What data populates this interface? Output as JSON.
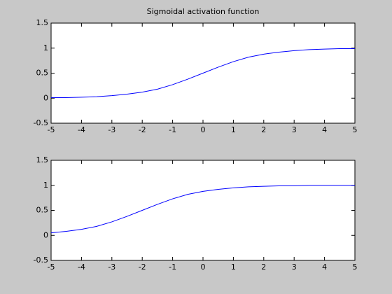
{
  "chart_data": [
    {
      "type": "line",
      "title": "Sigmoidal activation function",
      "x": [
        -5,
        -4.5,
        -4,
        -3.5,
        -3,
        -2.5,
        -2,
        -1.5,
        -1,
        -0.5,
        0,
        0.5,
        1,
        1.5,
        2,
        2.5,
        3,
        3.5,
        4,
        4.5,
        5
      ],
      "values": [
        0.01,
        0.01,
        0.02,
        0.03,
        0.05,
        0.08,
        0.12,
        0.18,
        0.27,
        0.38,
        0.5,
        0.62,
        0.73,
        0.82,
        0.88,
        0.92,
        0.95,
        0.97,
        0.98,
        0.99,
        0.99
      ],
      "color": "#0000ff",
      "xlim": [
        -5,
        5
      ],
      "xticks": [
        -5,
        -4,
        -3,
        -2,
        -1,
        0,
        1,
        2,
        3,
        4,
        5
      ],
      "ylim": [
        -0.5,
        1.5
      ],
      "yticks": [
        -0.5,
        0,
        0.5,
        1,
        1.5
      ]
    },
    {
      "type": "line",
      "x": [
        -5,
        -4.5,
        -4,
        -3.5,
        -3,
        -2.5,
        -2,
        -1.5,
        -1,
        -0.5,
        0,
        0.5,
        1,
        1.5,
        2,
        2.5,
        3,
        3.5,
        4,
        4.5,
        5
      ],
      "values": [
        0.05,
        0.08,
        0.12,
        0.18,
        0.27,
        0.38,
        0.5,
        0.62,
        0.73,
        0.82,
        0.88,
        0.92,
        0.95,
        0.97,
        0.98,
        0.99,
        0.99,
        1.0,
        1.0,
        1.0,
        1.0
      ],
      "color": "#0000ff",
      "xlim": [
        -5,
        5
      ],
      "xticks": [
        -5,
        -4,
        -3,
        -2,
        -1,
        0,
        1,
        2,
        3,
        4,
        5
      ],
      "ylim": [
        -0.5,
        1.5
      ],
      "yticks": [
        -0.5,
        0,
        0.5,
        1,
        1.5
      ]
    }
  ]
}
